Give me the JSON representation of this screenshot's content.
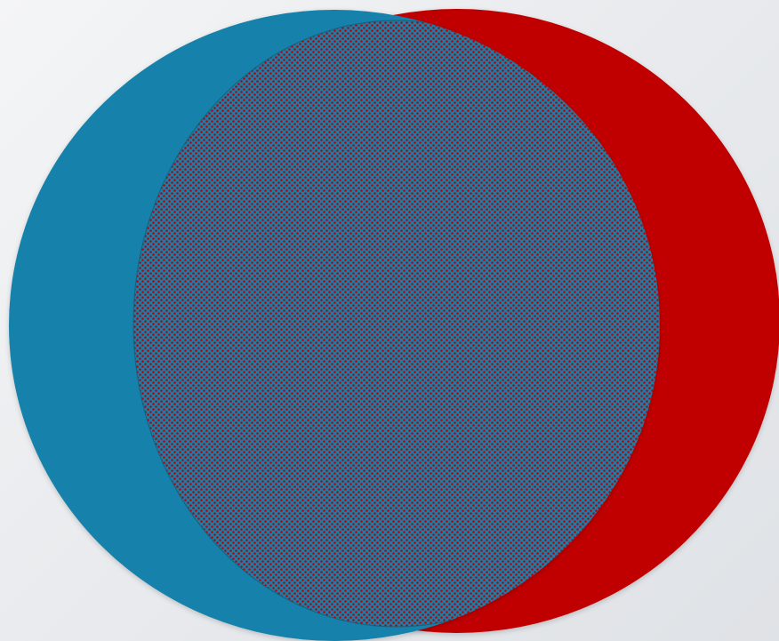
{
  "diagram": {
    "type": "venn",
    "sets": [
      {
        "id": "left",
        "color": "#1482ab"
      },
      {
        "id": "right",
        "color": "#c00000"
      }
    ],
    "overlap": {
      "fill": "#1c7ea8",
      "pattern": "diagonal-dots",
      "pattern_color": "#c00000"
    },
    "background": "#e9ebee"
  }
}
